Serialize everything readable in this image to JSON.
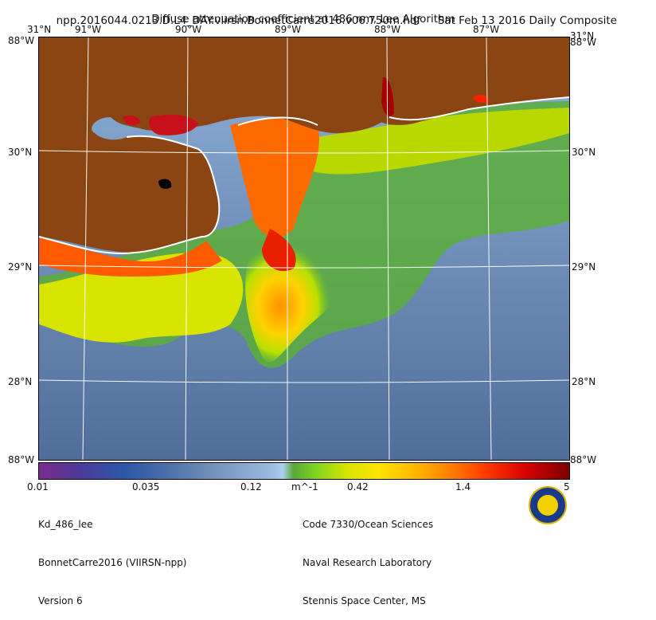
{
  "header": {
    "file": "npp.2016044.0213.D.L4_DAY.viirsn.BonnetCarre2016.v06.750m.hdf",
    "date": "Sat Feb 13 2016 Daily Composite",
    "subtitle": "Diffuse attenuation coefficient at 486 nm, Lee Algorithm"
  },
  "axes": {
    "top_lon": [
      "91°W",
      "90°W",
      "89°W",
      "88°W",
      "87°W"
    ],
    "top_left_corner": "31°N",
    "top_right_corner": "31°N",
    "left_lat": [
      "30°N",
      "29°N",
      "28°N"
    ],
    "right_lat": [
      "30°N",
      "29°N",
      "28°N"
    ],
    "corner_tl": "88°W",
    "corner_tr": "88°W",
    "corner_bl": "88°W",
    "corner_br": "88°W"
  },
  "colorbar": {
    "ticks": [
      "0.01",
      "0.035",
      "0.12",
      "m^-1",
      "0.42",
      "1.4",
      "5"
    ]
  },
  "footer": {
    "left": [
      "Kd_486_lee",
      "BonnetCarre2016 (VIIRSN-npp)",
      "Version 6"
    ],
    "right": [
      "Code 7330/Ocean Sciences",
      "Naval Research Laboratory",
      "Stennis Space Center, MS"
    ]
  },
  "colors": {
    "land": "#8b4513",
    "ocean": "#6f8fb8"
  }
}
